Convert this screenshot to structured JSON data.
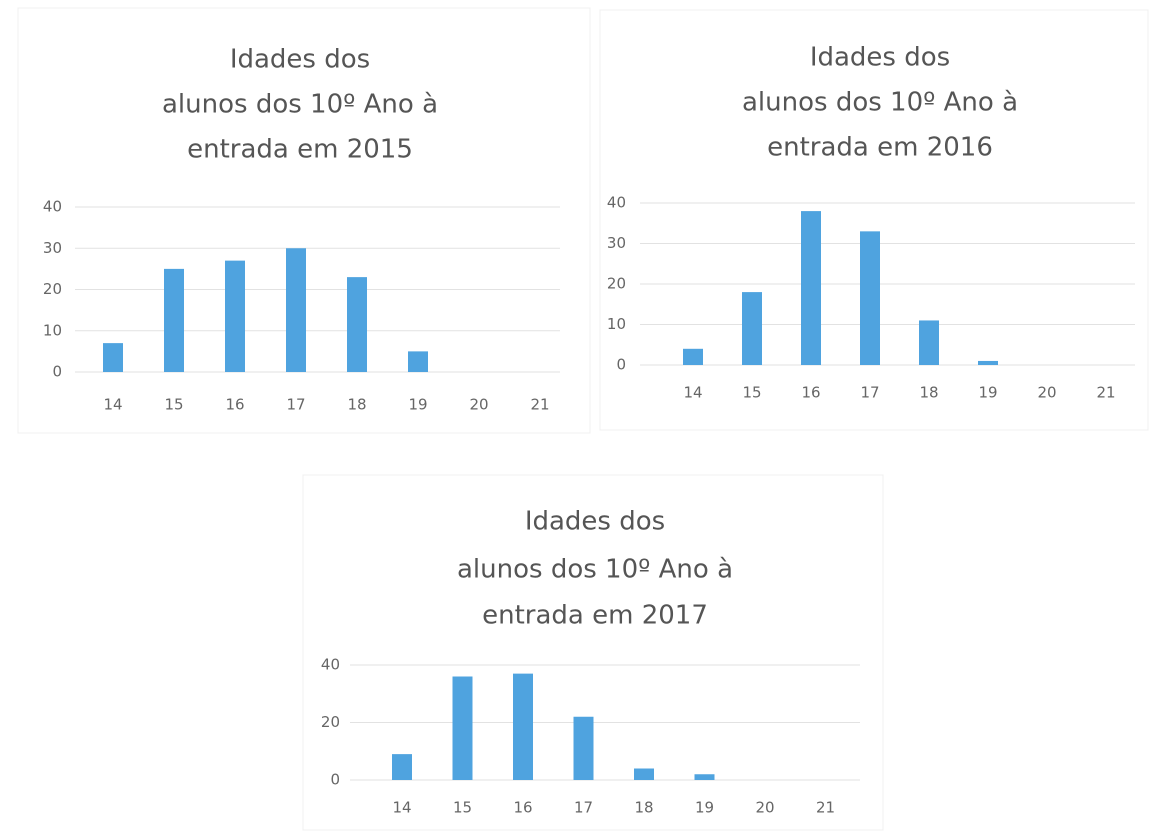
{
  "chart_data": [
    {
      "type": "bar",
      "title": [
        "Idades dos",
        "alunos dos 10º Ano à",
        "entrada em 2015"
      ],
      "categories": [
        "14",
        "15",
        "16",
        "17",
        "18",
        "19",
        "20",
        "21"
      ],
      "values": [
        7,
        25,
        27,
        30,
        23,
        5,
        0,
        0
      ],
      "color": "#4fa3df",
      "ylim": [
        0,
        40
      ],
      "yticks": [
        0,
        10,
        20,
        30,
        40
      ],
      "grid": true
    },
    {
      "type": "bar",
      "title": [
        "Idades dos",
        "alunos dos 10º Ano à",
        "entrada em 2016"
      ],
      "categories": [
        "14",
        "15",
        "16",
        "17",
        "18",
        "19",
        "20",
        "21"
      ],
      "values": [
        4,
        18,
        38,
        33,
        11,
        1,
        0,
        0
      ],
      "color": "#4fa3df",
      "ylim": [
        0,
        40
      ],
      "yticks": [
        0,
        10,
        20,
        30,
        40
      ],
      "grid": true
    },
    {
      "type": "bar",
      "title": [
        "Idades dos",
        "alunos dos 10º Ano à",
        "entrada em 2017"
      ],
      "categories": [
        "14",
        "15",
        "16",
        "17",
        "18",
        "19",
        "20",
        "21"
      ],
      "values": [
        9,
        36,
        37,
        22,
        4,
        2,
        0,
        0
      ],
      "color": "#4fa3df",
      "ylim": [
        0,
        40
      ],
      "yticks": [
        0,
        20,
        40
      ],
      "grid": true
    }
  ]
}
